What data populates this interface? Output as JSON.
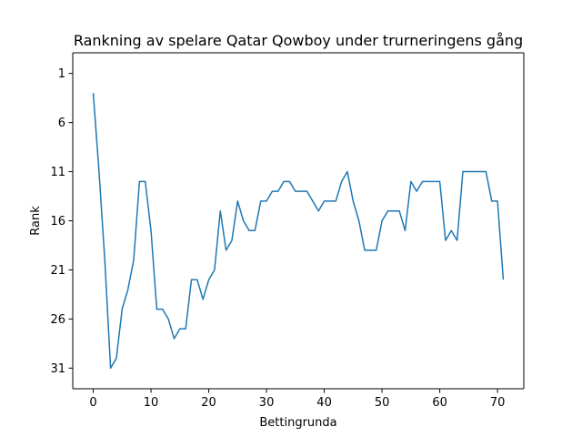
{
  "chart_data": {
    "type": "line",
    "title": "Rankning av spelare Qatar Qowboy under trurneringens gång",
    "xlabel": "Bettingrunda",
    "ylabel": "Rank",
    "xlim": [
      -3.55,
      74.55
    ],
    "ylim": [
      33.1,
      -1.1
    ],
    "y_inverted": true,
    "xticks": [
      0,
      10,
      20,
      30,
      40,
      50,
      60,
      70
    ],
    "yticks": [
      1,
      6,
      11,
      16,
      21,
      26,
      31
    ],
    "grid": false,
    "series": [
      {
        "color": "#1f77b4",
        "x": [
          0,
          1,
          2,
          3,
          4,
          5,
          6,
          7,
          8,
          9,
          10,
          11,
          12,
          13,
          14,
          15,
          16,
          17,
          18,
          19,
          20,
          21,
          22,
          23,
          24,
          25,
          26,
          27,
          28,
          29,
          30,
          31,
          32,
          33,
          34,
          35,
          36,
          37,
          38,
          39,
          40,
          41,
          42,
          43,
          44,
          45,
          46,
          47,
          48,
          49,
          50,
          51,
          52,
          53,
          54,
          55,
          56,
          57,
          58,
          59,
          60,
          61,
          62,
          63,
          64,
          65,
          66,
          67,
          68,
          69,
          70,
          71
        ],
        "y": [
          3,
          11,
          20,
          31,
          30,
          25,
          23,
          20,
          12,
          12,
          17,
          25,
          25,
          26,
          28,
          27,
          27,
          22,
          22,
          24,
          22,
          21,
          15,
          19,
          18,
          14,
          16,
          17,
          17,
          14,
          14,
          13,
          13,
          12,
          12,
          13,
          13,
          13,
          14,
          15,
          14,
          14,
          14,
          12,
          11,
          14,
          16,
          19,
          19,
          19,
          16,
          15,
          15,
          15,
          17,
          12,
          13,
          12,
          12,
          12,
          12,
          18,
          17,
          18,
          11,
          11,
          11,
          11,
          11,
          14,
          14,
          22
        ]
      }
    ]
  }
}
